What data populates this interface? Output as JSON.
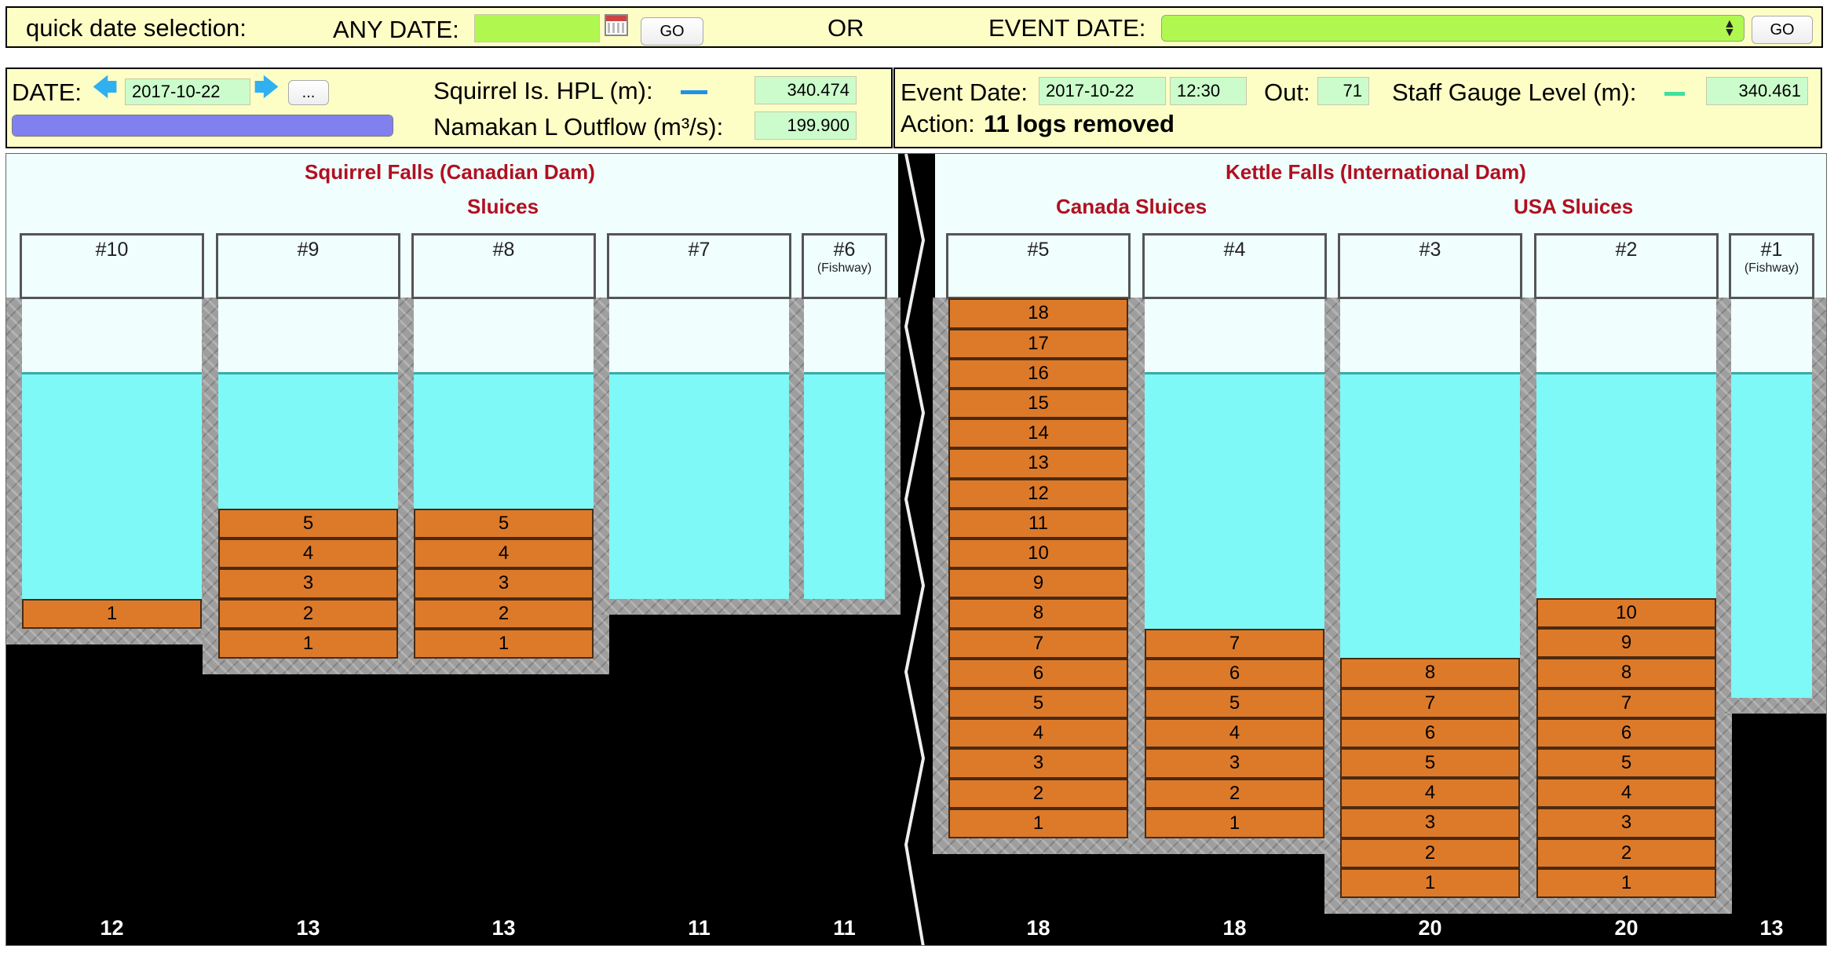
{
  "quick_bar": {
    "label": "quick date selection:",
    "any_date_label": "ANY DATE:",
    "any_date_value": "",
    "go_label": "GO",
    "or_label": "OR",
    "event_date_label": "EVENT DATE:",
    "event_date_value": "",
    "event_go_label": "GO",
    "calendar_icon": "calendar-icon",
    "field_color": "#b0f850"
  },
  "date_panel": {
    "date_label": "DATE:",
    "date_value": "2017-10-22",
    "more_label": "...",
    "hpl_label": "Squirrel Is. HPL (m):",
    "hpl_value": "340.474",
    "outflow_label": "Namakan L Outflow (m³/s):",
    "outflow_value": "199.900",
    "progress_fraction": 1.0,
    "progress_color": "#8080ef",
    "hpl_legend_color": "#2090e8"
  },
  "event_panel": {
    "event_date_label": "Event Date:",
    "event_date_value": "2017-10-22",
    "event_time_value": "12:30",
    "out_label": "Out:",
    "out_value": "71",
    "staff_label": "Staff Gauge Level (m):",
    "staff_value": "340.461",
    "staff_legend_color": "#40e0a0",
    "action_label": "Action:",
    "action_value": "11 logs removed"
  },
  "dams": {
    "squirrel_title": "Squirrel Falls (Canadian Dam)",
    "squirrel_sub": "Sluices",
    "kettle_title": "Kettle Falls (International Dam)",
    "canada_sub": "Canada Sluices",
    "usa_sub": "USA Sluices"
  },
  "sluices": [
    {
      "name": "#10",
      "note": "",
      "logs": 1,
      "count": "12"
    },
    {
      "name": "#9",
      "note": "",
      "logs": 5,
      "count": "13"
    },
    {
      "name": "#8",
      "note": "",
      "logs": 5,
      "count": "13"
    },
    {
      "name": "#7",
      "note": "",
      "logs": 0,
      "count": "11"
    },
    {
      "name": "#6",
      "note": "(Fishway)",
      "logs": 0,
      "count": "11"
    },
    {
      "name": "#5",
      "note": "",
      "logs": 18,
      "count": "18"
    },
    {
      "name": "#4",
      "note": "",
      "logs": 7,
      "count": "18"
    },
    {
      "name": "#3",
      "note": "",
      "logs": 8,
      "count": "20"
    },
    {
      "name": "#2",
      "note": "",
      "logs": 10,
      "count": "20"
    },
    {
      "name": "#1",
      "note": "(Fishway)",
      "logs": 0,
      "count": "13"
    }
  ]
}
